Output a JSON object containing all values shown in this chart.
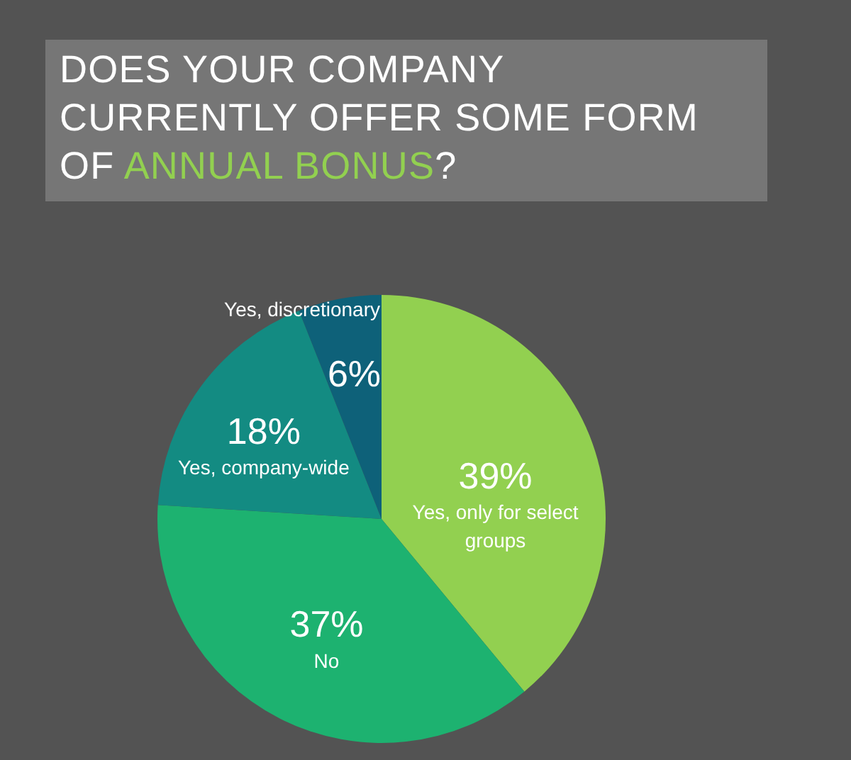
{
  "chart_data": {
    "type": "pie",
    "title": "DOES YOUR COMPANY CURRENTLY OFFER SOME FORM OF ANNUAL BONUS?",
    "categories": [
      "Yes, only for select groups",
      "No",
      "Yes, company-wide",
      "Yes, discretionary"
    ],
    "values": [
      39,
      37,
      18,
      6
    ],
    "colors": [
      "#92d050",
      "#1db270",
      "#138b82",
      "#0e6179"
    ],
    "value_labels": [
      "39%",
      "37%",
      "18%",
      "6%"
    ]
  }
}
